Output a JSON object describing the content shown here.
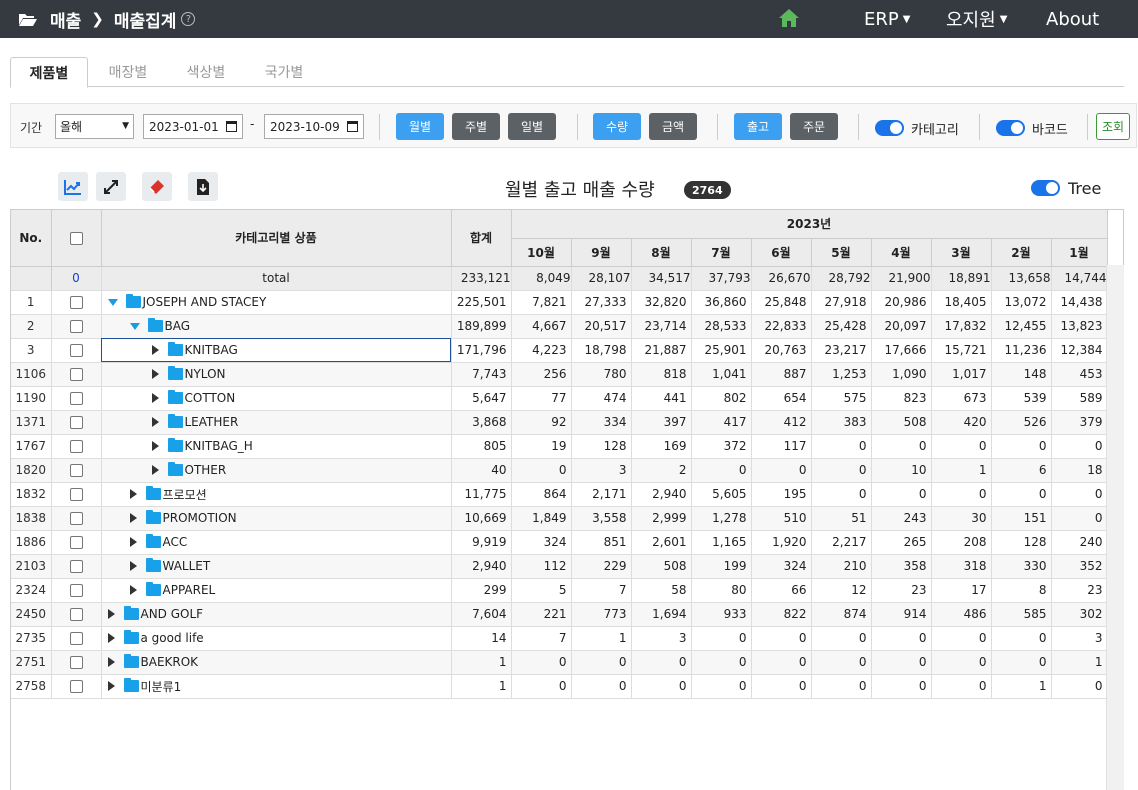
{
  "header": {
    "breadcrumb": [
      "매출",
      "매출집계"
    ],
    "help_glyph": "?",
    "menus": [
      {
        "label": "ERP",
        "has_caret": true
      },
      {
        "label": "오지원",
        "has_caret": true
      },
      {
        "label": "About",
        "has_caret": false
      }
    ],
    "colors": {
      "bar": "#343a40",
      "home_icon": "#5cb85c"
    }
  },
  "tabs": [
    {
      "label": "제품별",
      "active": true
    },
    {
      "label": "매장별",
      "active": false
    },
    {
      "label": "색상별",
      "active": false
    },
    {
      "label": "국가별",
      "active": false
    }
  ],
  "filters": {
    "period_label": "기간",
    "period_value": "올해",
    "date_from": "2023-01-01",
    "date_to": "2023-10-09",
    "dash": "-",
    "group_by": [
      "월별",
      "주별",
      "일별"
    ],
    "measure": [
      "수량",
      "금액"
    ],
    "doc_type": [
      "출고",
      "주문"
    ],
    "category_toggle_label": "카테고리",
    "barcode_toggle_label": "바코드",
    "search_button": "조회"
  },
  "toolbar": {
    "icons": [
      "chart-icon",
      "expand-icon",
      "clear-icon",
      "download-icon"
    ],
    "title": "월별 출고 매출 수량",
    "badge": "2764",
    "tree_toggle_label": "Tree"
  },
  "table": {
    "headers": {
      "no": "No.",
      "name": "카테고리별 상품",
      "sum": "합계",
      "year": "2023년",
      "months": [
        "10월",
        "9월",
        "8월",
        "7월",
        "6월",
        "5월",
        "4월",
        "3월",
        "2월",
        "1월"
      ]
    },
    "total": {
      "count": "0",
      "label": "total",
      "sum": "233,121",
      "months": [
        "8,049",
        "28,107",
        "34,517",
        "37,793",
        "26,670",
        "28,792",
        "21,900",
        "18,891",
        "13,658",
        "14,744"
      ]
    },
    "rows": [
      {
        "no": "1",
        "name": "JOSEPH AND STACEY",
        "level": 0,
        "expanded": true,
        "sum": "225,501",
        "months": [
          "7,821",
          "27,333",
          "32,820",
          "36,860",
          "25,848",
          "27,918",
          "20,986",
          "18,405",
          "13,072",
          "14,438"
        ]
      },
      {
        "no": "2",
        "name": "BAG",
        "level": 1,
        "expanded": true,
        "sum": "189,899",
        "months": [
          "4,667",
          "20,517",
          "23,714",
          "28,533",
          "22,833",
          "25,428",
          "20,097",
          "17,832",
          "12,455",
          "13,823"
        ]
      },
      {
        "no": "3",
        "name": "KNITBAG",
        "level": 2,
        "expanded": false,
        "sum": "171,796",
        "months": [
          "4,223",
          "18,798",
          "21,887",
          "25,901",
          "20,763",
          "23,217",
          "17,666",
          "15,721",
          "11,236",
          "12,384"
        ],
        "selected": true
      },
      {
        "no": "1106",
        "name": "NYLON",
        "level": 2,
        "expanded": false,
        "sum": "7,743",
        "months": [
          "256",
          "780",
          "818",
          "1,041",
          "887",
          "1,253",
          "1,090",
          "1,017",
          "148",
          "453"
        ]
      },
      {
        "no": "1190",
        "name": "COTTON",
        "level": 2,
        "expanded": false,
        "sum": "5,647",
        "months": [
          "77",
          "474",
          "441",
          "802",
          "654",
          "575",
          "823",
          "673",
          "539",
          "589"
        ]
      },
      {
        "no": "1371",
        "name": "LEATHER",
        "level": 2,
        "expanded": false,
        "sum": "3,868",
        "months": [
          "92",
          "334",
          "397",
          "417",
          "412",
          "383",
          "508",
          "420",
          "526",
          "379"
        ]
      },
      {
        "no": "1767",
        "name": "KNITBAG_H",
        "level": 2,
        "expanded": false,
        "sum": "805",
        "months": [
          "19",
          "128",
          "169",
          "372",
          "117",
          "0",
          "0",
          "0",
          "0",
          "0"
        ]
      },
      {
        "no": "1820",
        "name": "OTHER",
        "level": 2,
        "expanded": false,
        "sum": "40",
        "months": [
          "0",
          "3",
          "2",
          "0",
          "0",
          "0",
          "10",
          "1",
          "6",
          "18"
        ]
      },
      {
        "no": "1832",
        "name": "프로모션",
        "level": 1,
        "expanded": false,
        "sum": "11,775",
        "months": [
          "864",
          "2,171",
          "2,940",
          "5,605",
          "195",
          "0",
          "0",
          "0",
          "0",
          "0"
        ]
      },
      {
        "no": "1838",
        "name": "PROMOTION",
        "level": 1,
        "expanded": false,
        "sum": "10,669",
        "months": [
          "1,849",
          "3,558",
          "2,999",
          "1,278",
          "510",
          "51",
          "243",
          "30",
          "151",
          "0"
        ]
      },
      {
        "no": "1886",
        "name": "ACC",
        "level": 1,
        "expanded": false,
        "sum": "9,919",
        "months": [
          "324",
          "851",
          "2,601",
          "1,165",
          "1,920",
          "2,217",
          "265",
          "208",
          "128",
          "240"
        ]
      },
      {
        "no": "2103",
        "name": "WALLET",
        "level": 1,
        "expanded": false,
        "sum": "2,940",
        "months": [
          "112",
          "229",
          "508",
          "199",
          "324",
          "210",
          "358",
          "318",
          "330",
          "352"
        ]
      },
      {
        "no": "2324",
        "name": "APPAREL",
        "level": 1,
        "expanded": false,
        "sum": "299",
        "months": [
          "5",
          "7",
          "58",
          "80",
          "66",
          "12",
          "23",
          "17",
          "8",
          "23"
        ]
      },
      {
        "no": "2450",
        "name": "AND GOLF",
        "level": 0,
        "expanded": false,
        "sum": "7,604",
        "months": [
          "221",
          "773",
          "1,694",
          "933",
          "822",
          "874",
          "914",
          "486",
          "585",
          "302"
        ]
      },
      {
        "no": "2735",
        "name": "a good life",
        "level": 0,
        "expanded": false,
        "sum": "14",
        "months": [
          "7",
          "1",
          "3",
          "0",
          "0",
          "0",
          "0",
          "0",
          "0",
          "3"
        ]
      },
      {
        "no": "2751",
        "name": "BAEKROK",
        "level": 0,
        "expanded": false,
        "sum": "1",
        "months": [
          "0",
          "0",
          "0",
          "0",
          "0",
          "0",
          "0",
          "0",
          "0",
          "1"
        ]
      },
      {
        "no": "2758",
        "name": "미분류1",
        "level": 0,
        "expanded": false,
        "sum": "1",
        "months": [
          "0",
          "0",
          "0",
          "0",
          "0",
          "0",
          "0",
          "0",
          "1",
          "0"
        ]
      }
    ]
  }
}
